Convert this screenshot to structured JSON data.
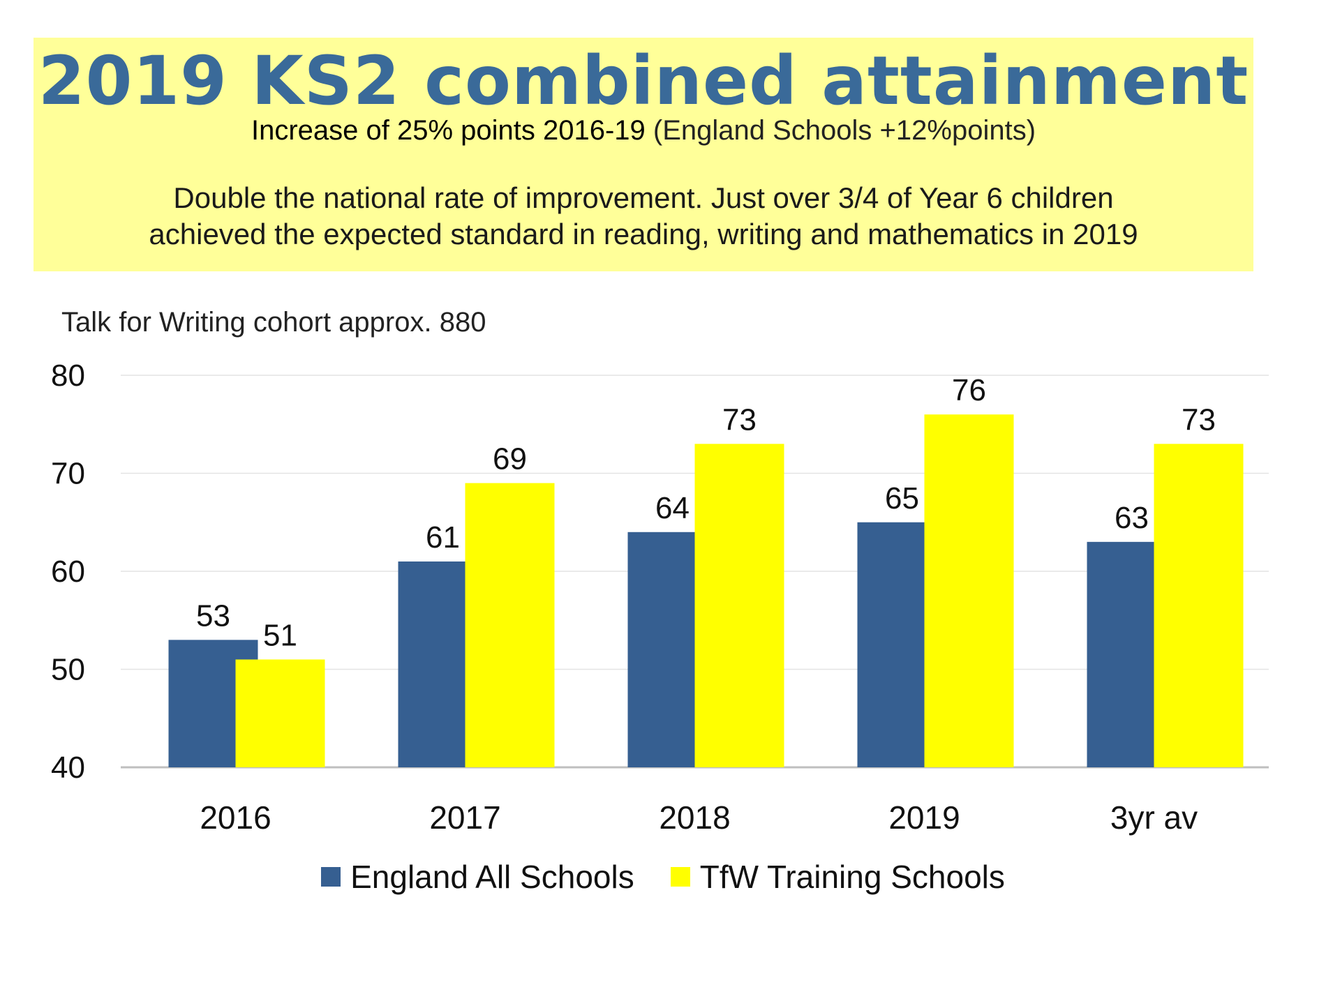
{
  "banner": {
    "title": "2019 KS2 combined attainment",
    "subtitle_strong": "Increase of 25% points 2016-19",
    "subtitle_rest": " (England Schools +12%points)",
    "line1": "Double the national rate of improvement. Just over 3/4 of Year 6 children",
    "line2": "achieved the expected standard in reading, writing and mathematics in 2019",
    "background": "#ffff99",
    "title_color": "#3a6a99"
  },
  "chart_data": {
    "type": "bar",
    "title": "Talk for Writing cohort approx. 880",
    "categories": [
      "2016",
      "2017",
      "2018",
      "2019",
      "3yr av"
    ],
    "series": [
      {
        "name": "England All Schools",
        "color": "#365f91",
        "values": [
          53,
          61,
          64,
          65,
          63
        ]
      },
      {
        "name": "TfW Training Schools",
        "color": "#ffff00",
        "values": [
          51,
          69,
          73,
          76,
          73
        ]
      }
    ],
    "ylim": [
      40,
      80
    ],
    "yticks": [
      40,
      50,
      60,
      70,
      80
    ],
    "grid": true,
    "legend": "bottom"
  }
}
